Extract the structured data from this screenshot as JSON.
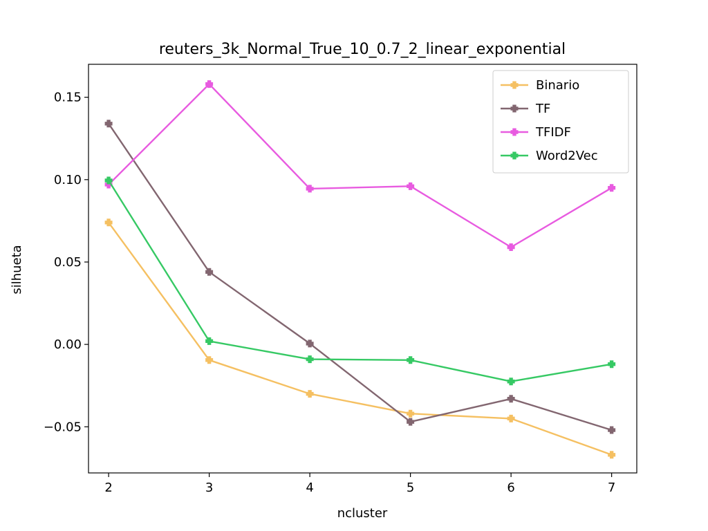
{
  "chart_data": {
    "type": "line",
    "title": "reuters_3k_Normal_True_10_0.7_2_linear_exponential",
    "xlabel": "ncluster",
    "ylabel": "silhueta",
    "x": [
      2,
      3,
      4,
      5,
      6,
      7
    ],
    "x_ticks": [
      "2",
      "3",
      "4",
      "5",
      "6",
      "7"
    ],
    "y_ticks": [
      -0.05,
      0.0,
      0.05,
      0.1,
      0.15
    ],
    "y_tick_labels": [
      "−0.05",
      "0.00",
      "0.05",
      "0.10",
      "0.15"
    ],
    "xlim": [
      1.8,
      7.25
    ],
    "ylim": [
      -0.078,
      0.17
    ],
    "grid": false,
    "legend_position": "top-right",
    "marker": "plus-filled",
    "series": [
      {
        "name": "Binario",
        "color": "#f5c062",
        "values": [
          0.074,
          -0.0095,
          -0.03,
          -0.042,
          -0.045,
          -0.067
        ]
      },
      {
        "name": "TF",
        "color": "#826670",
        "values": [
          0.134,
          0.044,
          0.0005,
          -0.047,
          -0.033,
          -0.052
        ]
      },
      {
        "name": "TFIDF",
        "color": "#e85be0",
        "values": [
          0.097,
          0.158,
          0.0945,
          0.096,
          0.059,
          0.095
        ]
      },
      {
        "name": "Word2Vec",
        "color": "#36c964",
        "values": [
          0.0995,
          0.002,
          -0.009,
          -0.0095,
          -0.0225,
          -0.012
        ]
      }
    ]
  }
}
